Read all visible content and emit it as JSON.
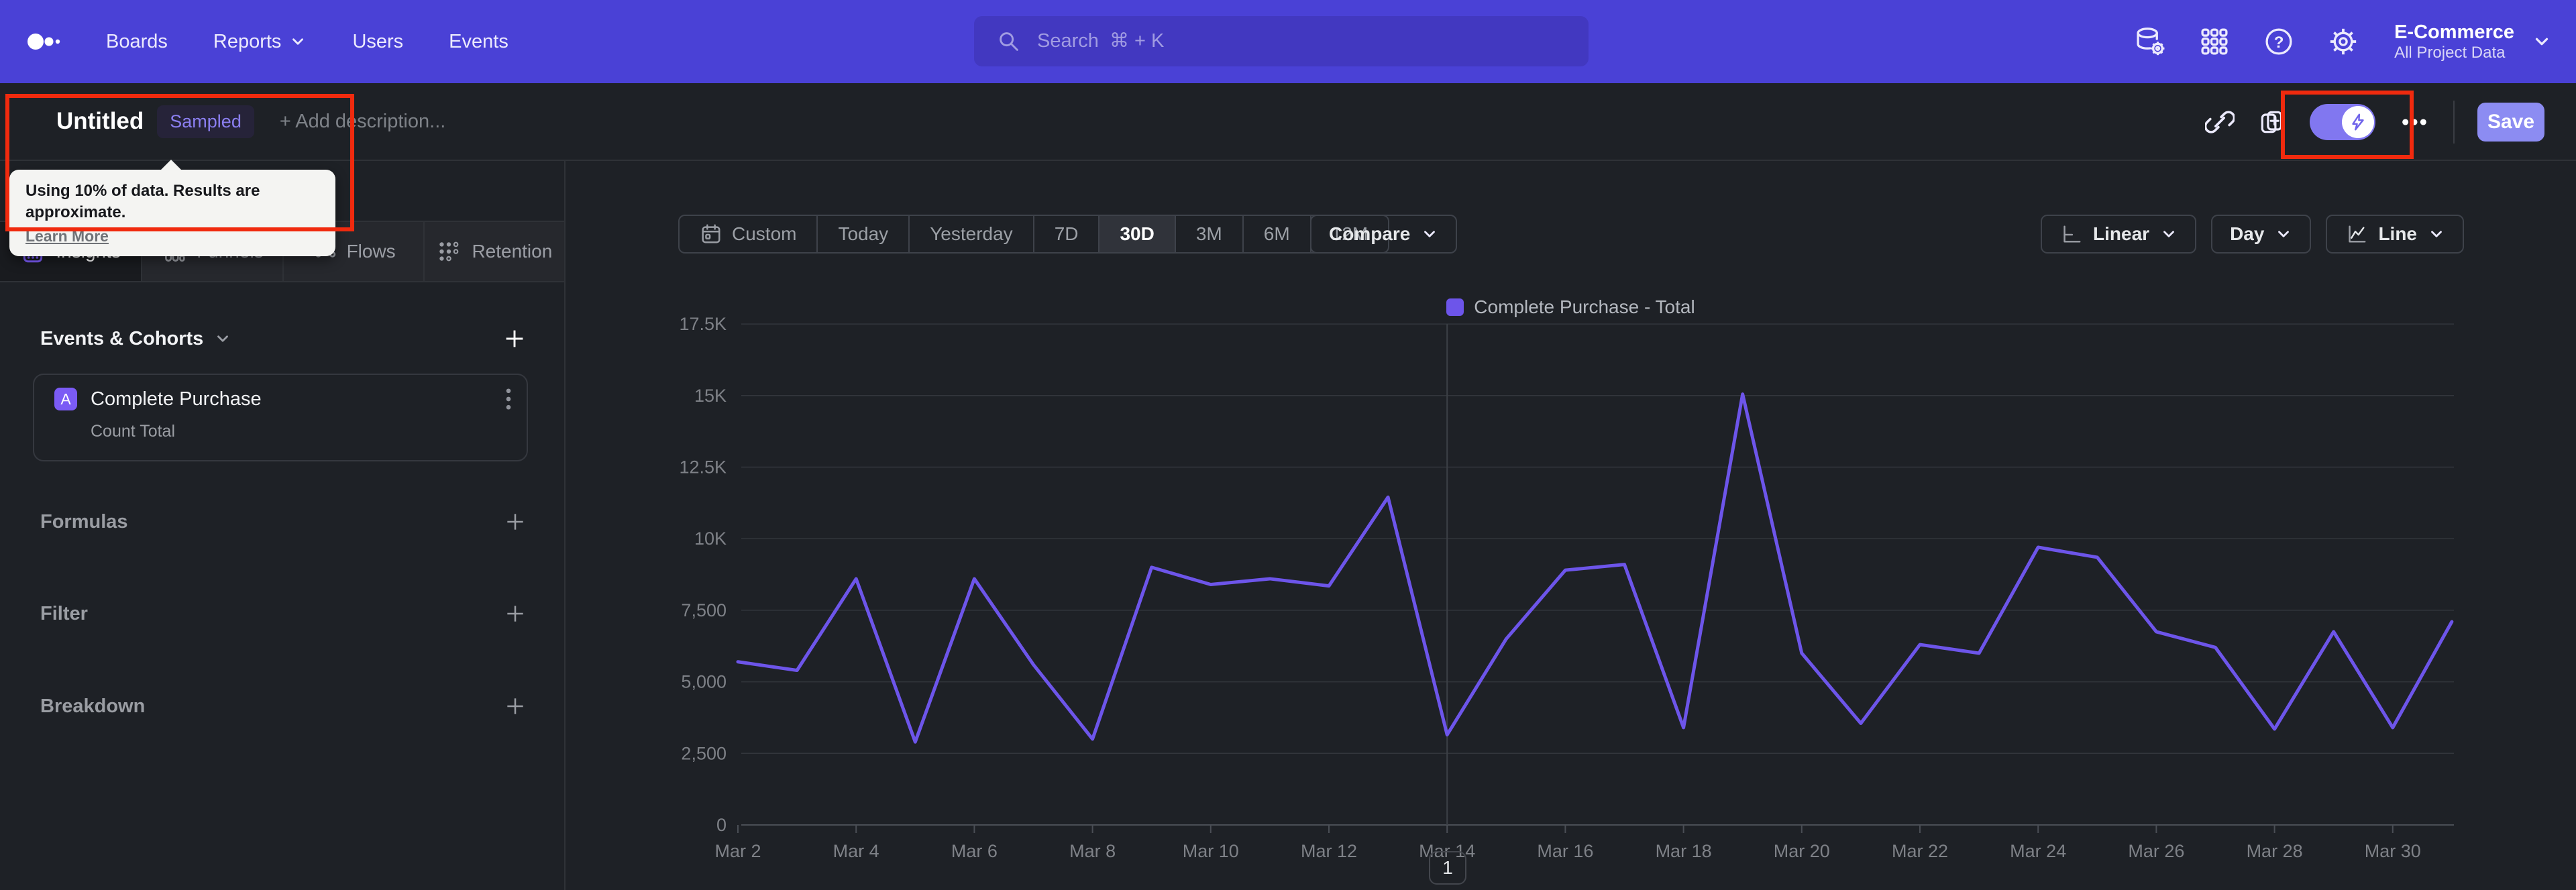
{
  "nav": {
    "items": [
      "Boards",
      "Reports",
      "Users",
      "Events"
    ],
    "search_placeholder": "Search  ⌘ + K",
    "project_name": "E-Commerce",
    "project_scope": "All Project Data"
  },
  "report": {
    "title": "Untitled",
    "badge": "Sampled",
    "description_placeholder": "+ Add description...",
    "save": "Save"
  },
  "tooltip": {
    "message": "Using 10% of data. Results are approximate.",
    "link": "Learn More"
  },
  "sidebar": {
    "tabs": [
      "Insights",
      "Funnels",
      "Flows",
      "Retention"
    ],
    "active_tab": "Insights",
    "events_header": "Events & Cohorts",
    "event_badge": "A",
    "event_name": "Complete Purchase",
    "event_metric": "Count Total",
    "sections": [
      "Formulas",
      "Filter",
      "Breakdown"
    ]
  },
  "controls": {
    "ranges": [
      "Custom",
      "Today",
      "Yesterday",
      "7D",
      "30D",
      "3M",
      "6M",
      "12M"
    ],
    "active_range": "30D",
    "compare": "Compare",
    "scale": "Linear",
    "granularity": "Day",
    "chart_type": "Line"
  },
  "chart_data": {
    "type": "line",
    "legend": [
      "Complete Purchase - Total"
    ],
    "legend_position": "top-center",
    "series_color": "#6d55ea",
    "x": [
      "Mar 2",
      "Mar 3",
      "Mar 4",
      "Mar 5",
      "Mar 6",
      "Mar 7",
      "Mar 8",
      "Mar 9",
      "Mar 10",
      "Mar 11",
      "Mar 12",
      "Mar 13",
      "Mar 14",
      "Mar 15",
      "Mar 16",
      "Mar 17",
      "Mar 18",
      "Mar 19",
      "Mar 20",
      "Mar 21",
      "Mar 22",
      "Mar 23",
      "Mar 24",
      "Mar 25",
      "Mar 26",
      "Mar 27",
      "Mar 28",
      "Mar 29",
      "Mar 30",
      "Mar 31"
    ],
    "values": [
      5700,
      5400,
      8600,
      2900,
      8600,
      5600,
      3000,
      9000,
      8400,
      8600,
      8350,
      11450,
      3150,
      6500,
      8900,
      9100,
      3400,
      15050,
      6000,
      3550,
      6300,
      6000,
      9700,
      9350,
      6750,
      6200,
      3350,
      6750,
      3400,
      7100
    ],
    "xtick_step": 2,
    "ylim": [
      0,
      17500
    ],
    "yticks": [
      0,
      2500,
      5000,
      7500,
      10000,
      12500,
      15000,
      17500
    ],
    "ytick_labels": [
      "0",
      "2,500",
      "5,000",
      "7,500",
      "10K",
      "12.5K",
      "15K",
      "17.5K"
    ],
    "grid": "horizontal",
    "marker_date": "Mar 14"
  },
  "pagination": "1",
  "colors": {
    "nav_bar": "#4a41d6",
    "accent_purple": "#6d55ea",
    "save_button": "#8c8cf2",
    "sampled_badge_text": "#8b7ff0",
    "annotation_red": "#f02a0e",
    "tooltip_bg": "#f4f4f2"
  }
}
